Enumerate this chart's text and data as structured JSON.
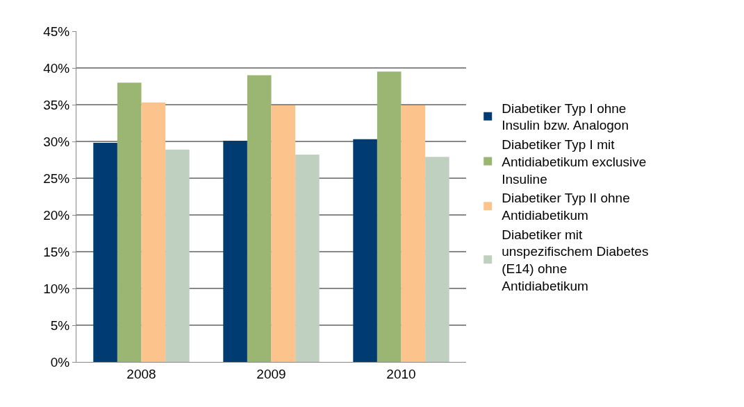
{
  "chart_data": {
    "type": "bar",
    "categories": [
      "2008",
      "2009",
      "2010"
    ],
    "series": [
      {
        "name": "Diabetiker Typ I ohne Insulin bzw. Analogon",
        "color": "#003c71",
        "values": [
          29.8,
          30.1,
          30.3
        ]
      },
      {
        "name": "Diabetiker Typ I mit Antidiabetikum exclusive Insuline",
        "color": "#9bb573",
        "values": [
          38.0,
          39.0,
          39.5
        ]
      },
      {
        "name": "Diabetiker Typ II ohne Antidiabetikum",
        "color": "#fcc48c",
        "values": [
          35.3,
          34.9,
          34.9
        ]
      },
      {
        "name": "Diabetiker mit unspezifischem Diabetes (E14) ohne Antidiabetikum",
        "color": "#bfd0c1",
        "values": [
          28.9,
          28.2,
          27.9
        ]
      }
    ],
    "ylim": [
      0,
      45
    ],
    "yticks": [
      {
        "value": 0,
        "label": "0%"
      },
      {
        "value": 5,
        "label": "5%"
      },
      {
        "value": 10,
        "label": "10%"
      },
      {
        "value": 15,
        "label": "15%"
      },
      {
        "value": 20,
        "label": "20%"
      },
      {
        "value": 25,
        "label": "25%"
      },
      {
        "value": 30,
        "label": "30%"
      },
      {
        "value": 35,
        "label": "35%"
      },
      {
        "value": 40,
        "label": "40%"
      },
      {
        "value": 45,
        "label": "45%"
      }
    ],
    "grid": "y",
    "legend": "right"
  }
}
